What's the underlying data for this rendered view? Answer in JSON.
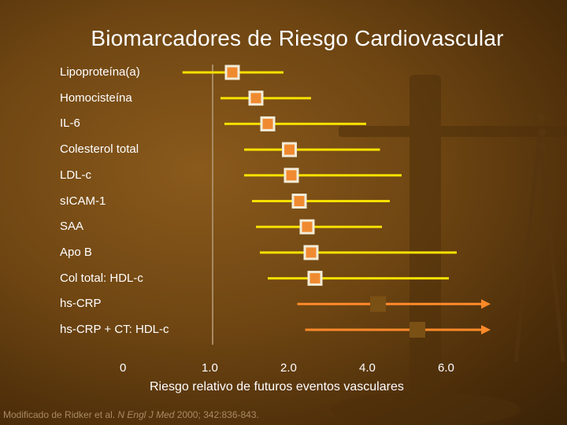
{
  "chart_data": {
    "type": "forest",
    "title": "Biomarcadores de Riesgo Cardiovascular",
    "xlabel": "Riesgo relativo de futuros eventos vasculares",
    "xticks": [
      "0",
      "1.0",
      "2.0",
      "4.0",
      "6.0"
    ],
    "rows": [
      {
        "label": "Lipoproteína(a)",
        "estimate": 1.3,
        "low": 0.65,
        "high": 1.95
      },
      {
        "label": "Homocisteína",
        "estimate": 1.6,
        "low": 1.15,
        "high": 2.6
      },
      {
        "label": "IL-6",
        "estimate": 1.75,
        "low": 1.2,
        "high": 4.0
      },
      {
        "label": "Colesterol total",
        "estimate": 2.05,
        "low": 1.45,
        "high": 4.35
      },
      {
        "label": "LDL-c",
        "estimate": 2.1,
        "low": 1.45,
        "high": 4.9
      },
      {
        "label": "sICAM-1",
        "estimate": 2.3,
        "low": 1.55,
        "high": 4.6
      },
      {
        "label": "SAA",
        "estimate": 2.5,
        "low": 1.6,
        "high": 4.4
      },
      {
        "label": "Apo B",
        "estimate": 2.6,
        "low": 1.65,
        "high": 6.3
      },
      {
        "label": "Col total: HDL-c",
        "estimate": 2.7,
        "low": 1.75,
        "high": 6.1
      },
      {
        "label": "hs-CRP",
        "estimate": 4.3,
        "low": 2.25,
        "high": 7.0
      },
      {
        "label": "hs-CRP + CT: HDL-c",
        "estimate": 5.3,
        "low": 2.45,
        "high": 7.0
      }
    ]
  },
  "colors": {
    "ci_line": "#f5e000",
    "ci_line_highlight": "#ff8a2a",
    "marker_fill": "#f08a30",
    "marker_border": "#f2ecd8",
    "marker_highlight_fill": "#7a5015",
    "axis": "#a88a62"
  },
  "source": {
    "prefix": "Modificado de Ridker et al. ",
    "journal": "N Engl J Med",
    "suffix": " 2000; 342:836-843."
  }
}
